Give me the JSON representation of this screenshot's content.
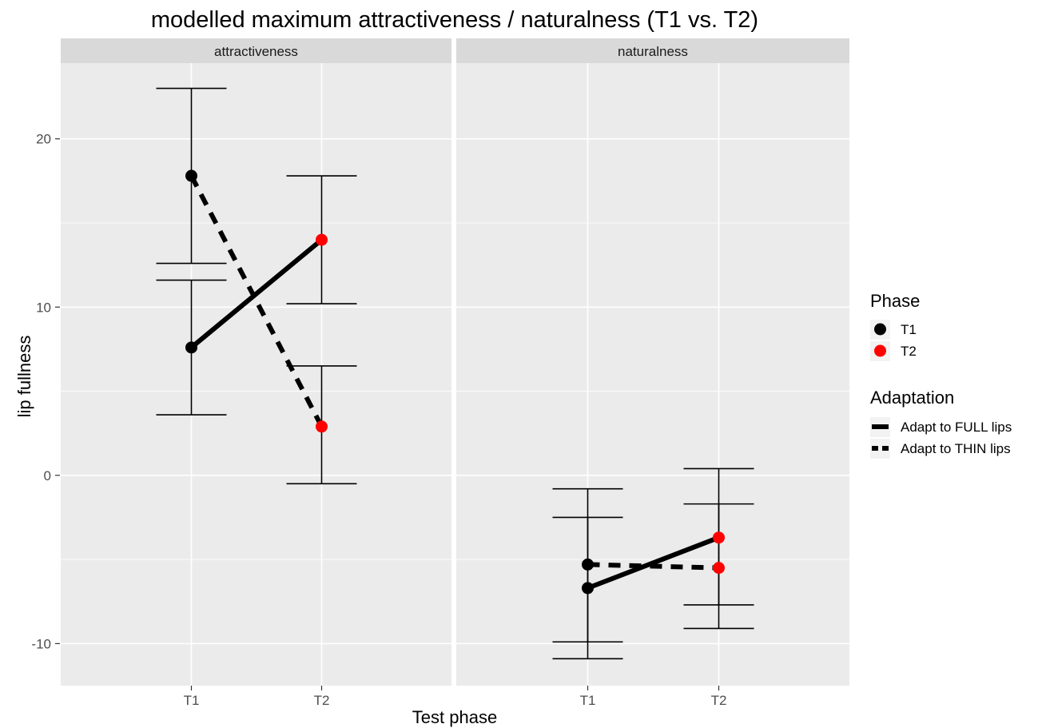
{
  "chart_data": {
    "type": "line",
    "title": "modelled maximum attractiveness / naturalness (T1 vs. T2)",
    "xlabel": "Test phase",
    "ylabel": "lip fullness",
    "categories": [
      "T1",
      "T2"
    ],
    "ylim": [
      -12.5,
      24.5
    ],
    "yticks": [
      -10,
      0,
      10,
      20
    ],
    "grid": true,
    "facets": [
      {
        "label": "attractiveness",
        "series": [
          {
            "name": "Adapt to FULL lips",
            "linetype": "solid",
            "values": [
              7.6,
              14.0
            ],
            "lower": [
              3.6,
              10.2
            ],
            "upper": [
              11.6,
              17.8
            ]
          },
          {
            "name": "Adapt to THIN lips",
            "linetype": "dashed",
            "values": [
              17.8,
              2.9
            ],
            "lower": [
              12.6,
              -0.5
            ],
            "upper": [
              23.0,
              6.5
            ]
          }
        ]
      },
      {
        "label": "naturalness",
        "series": [
          {
            "name": "Adapt to FULL lips",
            "linetype": "solid",
            "values": [
              -6.7,
              -3.7
            ],
            "lower": [
              -10.9,
              -7.7
            ],
            "upper": [
              -2.5,
              0.4
            ]
          },
          {
            "name": "Adapt to THIN lips",
            "linetype": "dashed",
            "values": [
              -5.3,
              -5.5
            ],
            "lower": [
              -9.9,
              -9.1
            ],
            "upper": [
              -0.8,
              -1.7
            ]
          }
        ]
      }
    ],
    "legend": {
      "position": "right",
      "phase_title": "Phase",
      "phase_items": [
        {
          "label": "T1",
          "color": "#000000"
        },
        {
          "label": "T2",
          "color": "#ff0000"
        }
      ],
      "adaptation_title": "Adaptation",
      "adaptation_items": [
        {
          "label": "Adapt to FULL lips",
          "linetype": "solid"
        },
        {
          "label": "Adapt to THIN lips",
          "linetype": "dashed"
        }
      ]
    },
    "colors": {
      "T1": "#000000",
      "T2": "#ff0000",
      "panel_bg": "#ebebeb",
      "strip_bg": "#d9d9d9",
      "grid": "#ffffff"
    }
  }
}
